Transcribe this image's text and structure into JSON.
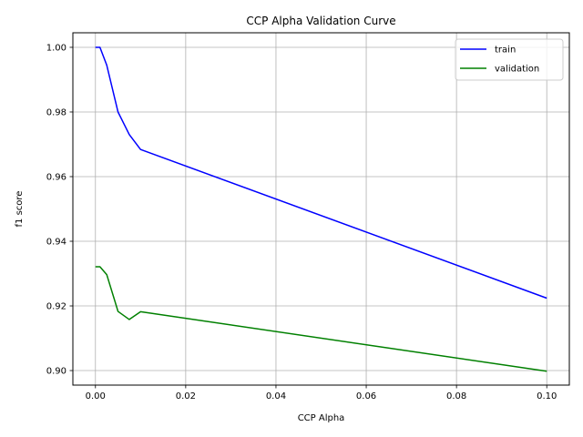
{
  "chart_data": {
    "type": "line",
    "title": "CCP Alpha Validation Curve",
    "xlabel": "CCP Alpha",
    "ylabel": "f1 score",
    "xlim": [
      -0.005,
      0.105
    ],
    "ylim": [
      0.8955,
      1.0045
    ],
    "xticks": [
      0.0,
      0.02,
      0.04,
      0.06,
      0.08,
      0.1
    ],
    "xtick_labels": [
      "0.00",
      "0.02",
      "0.04",
      "0.06",
      "0.08",
      "0.10"
    ],
    "yticks": [
      0.9,
      0.92,
      0.94,
      0.96,
      0.98,
      1.0
    ],
    "ytick_labels": [
      "0.90",
      "0.92",
      "0.94",
      "0.96",
      "0.98",
      "1.00"
    ],
    "grid": true,
    "legend_position": "top-right",
    "x": [
      0.0,
      0.001,
      0.0025,
      0.005,
      0.0075,
      0.01,
      0.1
    ],
    "series": [
      {
        "name": "train",
        "color": "#0000ff",
        "values": [
          1.0,
          1.0,
          0.9945,
          0.98,
          0.973,
          0.9684,
          0.9224
        ]
      },
      {
        "name": "validation",
        "color": "#008000",
        "values": [
          0.9321,
          0.9321,
          0.9297,
          0.9183,
          0.9158,
          0.9182,
          0.8998
        ]
      }
    ]
  }
}
